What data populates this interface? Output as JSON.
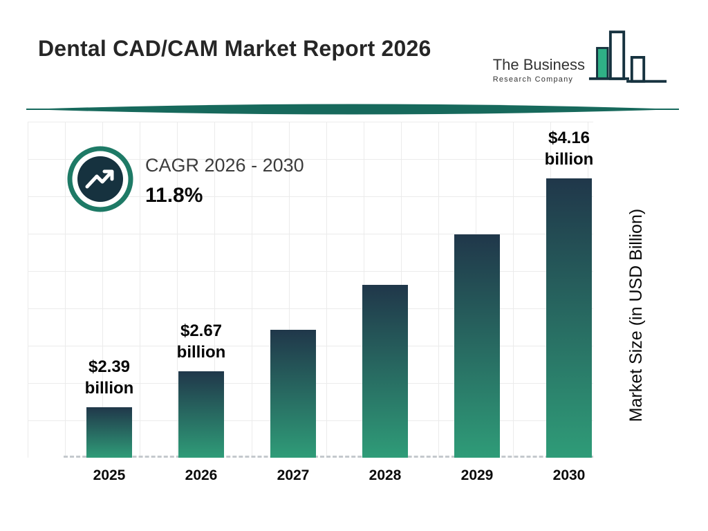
{
  "header": {
    "title": "Dental CAD/CAM Market Report 2026",
    "logo_line1": "The Business",
    "logo_line2": "Research Company"
  },
  "chart_data": {
    "type": "bar",
    "title": "Dental CAD/CAM Market Report 2026",
    "categories": [
      "2025",
      "2026",
      "2027",
      "2028",
      "2029",
      "2030"
    ],
    "values": [
      2.39,
      2.67,
      2.99,
      3.34,
      3.73,
      4.16
    ],
    "bar_labels": [
      "$2.39 billion",
      "$2.67 billion",
      null,
      null,
      null,
      "$4.16 billion"
    ],
    "ylabel": "Market Size (in USD Billion)",
    "xlabel": "",
    "ylim": [
      2.0,
      4.6
    ],
    "grid": true,
    "cagr_label": "CAGR 2026 - 2030",
    "cagr_value": "11.8%",
    "colors": {
      "bar_top": "#20374a",
      "bar_bottom": "#2f9c78",
      "divider": "#17695c",
      "badge_ring": "#1e7a66",
      "badge_inner": "#16323f",
      "grid": "#ebebeb"
    }
  }
}
